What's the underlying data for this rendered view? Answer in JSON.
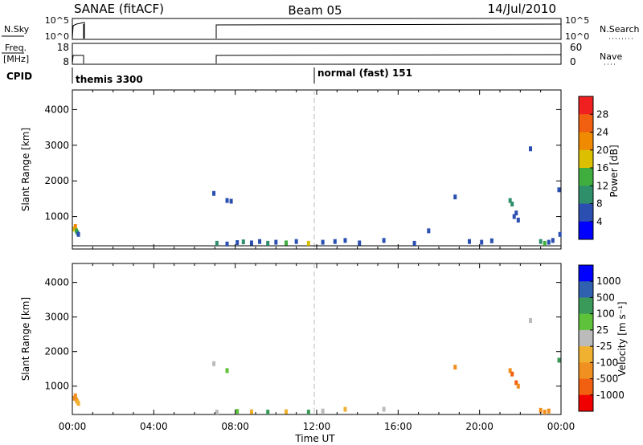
{
  "header": {
    "radar": "SANAE (fitACF)",
    "beam": "Beam 05",
    "date": "14/Jul/2010"
  },
  "top_panels": {
    "nsky_label": "N.Sky",
    "nsky_ticks": [
      "10^5",
      "10^0"
    ],
    "nsearch_label": "N.Search",
    "nsearch_ticks": [
      "10^5",
      "10^0"
    ],
    "freq_label_1": "Freq.",
    "freq_label_2": "[MHz]",
    "freq_ticks": [
      "18",
      "8"
    ],
    "nave_label": "Nave",
    "nave_ticks": [
      "60",
      "0"
    ],
    "cpid_label": "CPID",
    "cpid_modes": [
      {
        "label": "themis 3300",
        "start_hour": 0.0
      },
      {
        "label": "normal (fast) 151",
        "start_hour": 12.0
      }
    ]
  },
  "x_axis": {
    "label": "Time UT",
    "ticks": [
      "00:00",
      "04:00",
      "08:00",
      "12:00",
      "16:00",
      "20:00",
      "00:00"
    ]
  },
  "chart_data": [
    {
      "type": "scatter",
      "title": "",
      "ylabel": "Slant Range [km]",
      "yticks": [
        "1000",
        "2000",
        "3000",
        "4000"
      ],
      "ylim": [
        180,
        4550
      ],
      "xlim": [
        0,
        24
      ],
      "colorbar_label": "Power [dB]",
      "colorbar_ticks": [
        "4",
        "8",
        "12",
        "16",
        "20",
        "24",
        "28"
      ],
      "colorbar_colors": [
        "#0000ff",
        "#2a4fb0",
        "#2f8f6a",
        "#3fae3f",
        "#dcc000",
        "#f08a00",
        "#f06010",
        "#f02020"
      ],
      "points": [
        {
          "x": 0.1,
          "y": 650,
          "v": 18
        },
        {
          "x": 0.15,
          "y": 720,
          "v": 20
        },
        {
          "x": 0.2,
          "y": 600,
          "v": 12
        },
        {
          "x": 0.25,
          "y": 550,
          "v": 8
        },
        {
          "x": 0.3,
          "y": 500,
          "v": 4
        },
        {
          "x": 6.95,
          "y": 1650,
          "v": 6
        },
        {
          "x": 7.6,
          "y": 1450,
          "v": 6
        },
        {
          "x": 7.8,
          "y": 1430,
          "v": 4
        },
        {
          "x": 7.1,
          "y": 250,
          "v": 8
        },
        {
          "x": 7.6,
          "y": 230,
          "v": 6
        },
        {
          "x": 8.1,
          "y": 270,
          "v": 4
        },
        {
          "x": 8.4,
          "y": 290,
          "v": 10
        },
        {
          "x": 8.8,
          "y": 260,
          "v": 6
        },
        {
          "x": 9.2,
          "y": 300,
          "v": 4
        },
        {
          "x": 9.6,
          "y": 250,
          "v": 8
        },
        {
          "x": 10.0,
          "y": 280,
          "v": 6
        },
        {
          "x": 10.5,
          "y": 260,
          "v": 12
        },
        {
          "x": 11.0,
          "y": 300,
          "v": 4
        },
        {
          "x": 11.6,
          "y": 250,
          "v": 16
        },
        {
          "x": 12.3,
          "y": 280,
          "v": 6
        },
        {
          "x": 12.9,
          "y": 300,
          "v": 4
        },
        {
          "x": 13.4,
          "y": 330,
          "v": 6
        },
        {
          "x": 14.1,
          "y": 260,
          "v": 4
        },
        {
          "x": 15.3,
          "y": 330,
          "v": 6
        },
        {
          "x": 16.8,
          "y": 250,
          "v": 4
        },
        {
          "x": 17.5,
          "y": 600,
          "v": 6
        },
        {
          "x": 18.8,
          "y": 1550,
          "v": 4
        },
        {
          "x": 19.5,
          "y": 300,
          "v": 6
        },
        {
          "x": 20.1,
          "y": 280,
          "v": 4
        },
        {
          "x": 20.6,
          "y": 320,
          "v": 6
        },
        {
          "x": 21.5,
          "y": 1450,
          "v": 10
        },
        {
          "x": 21.6,
          "y": 1350,
          "v": 8
        },
        {
          "x": 21.7,
          "y": 1000,
          "v": 4
        },
        {
          "x": 21.8,
          "y": 1100,
          "v": 6
        },
        {
          "x": 21.9,
          "y": 900,
          "v": 4
        },
        {
          "x": 22.5,
          "y": 2900,
          "v": 6
        },
        {
          "x": 23.0,
          "y": 300,
          "v": 8
        },
        {
          "x": 23.2,
          "y": 250,
          "v": 12
        },
        {
          "x": 23.4,
          "y": 280,
          "v": 6
        },
        {
          "x": 23.6,
          "y": 330,
          "v": 4
        },
        {
          "x": 23.9,
          "y": 1750,
          "v": 6
        },
        {
          "x": 23.95,
          "y": 500,
          "v": 4
        }
      ]
    },
    {
      "type": "scatter",
      "title": "",
      "ylabel": "Slant Range [km]",
      "yticks": [
        "1000",
        "2000",
        "3000",
        "4000"
      ],
      "ylim": [
        180,
        4550
      ],
      "xlim": [
        0,
        24
      ],
      "colorbar_label": "Velocity [m s⁻¹]",
      "colorbar_ticks": [
        "1000",
        "500",
        "100",
        "25",
        "-25",
        "-100",
        "-500",
        "-1000"
      ],
      "colorbar_colors": [
        "#0000ff",
        "#3060b0",
        "#3a9a5a",
        "#5ec23a",
        "#bbbbbb",
        "#f0b030",
        "#f09020",
        "#f06010",
        "#f00000"
      ],
      "points": [
        {
          "x": 0.1,
          "y": 650,
          "v": -300
        },
        {
          "x": 0.15,
          "y": 720,
          "v": -500
        },
        {
          "x": 0.2,
          "y": 600,
          "v": -200
        },
        {
          "x": 0.25,
          "y": 550,
          "v": -100
        },
        {
          "x": 0.3,
          "y": 500,
          "v": -50
        },
        {
          "x": 6.95,
          "y": 1650,
          "v": 0
        },
        {
          "x": 7.6,
          "y": 1450,
          "v": 50
        },
        {
          "x": 7.1,
          "y": 250,
          "v": 0
        },
        {
          "x": 8.1,
          "y": 270,
          "v": 50
        },
        {
          "x": 8.8,
          "y": 260,
          "v": -50
        },
        {
          "x": 9.6,
          "y": 250,
          "v": 150
        },
        {
          "x": 10.5,
          "y": 260,
          "v": -50
        },
        {
          "x": 11.6,
          "y": 250,
          "v": 150
        },
        {
          "x": 12.3,
          "y": 280,
          "v": 0
        },
        {
          "x": 13.4,
          "y": 330,
          "v": -50
        },
        {
          "x": 15.3,
          "y": 330,
          "v": 0
        },
        {
          "x": 18.8,
          "y": 1550,
          "v": -300
        },
        {
          "x": 21.5,
          "y": 1450,
          "v": -400
        },
        {
          "x": 21.6,
          "y": 1350,
          "v": -600
        },
        {
          "x": 21.8,
          "y": 1100,
          "v": -600
        },
        {
          "x": 21.9,
          "y": 1000,
          "v": -400
        },
        {
          "x": 22.5,
          "y": 2900,
          "v": 0
        },
        {
          "x": 23.0,
          "y": 300,
          "v": -300
        },
        {
          "x": 23.2,
          "y": 250,
          "v": -500
        },
        {
          "x": 23.4,
          "y": 280,
          "v": -200
        },
        {
          "x": 23.9,
          "y": 1750,
          "v": 300
        }
      ]
    }
  ]
}
